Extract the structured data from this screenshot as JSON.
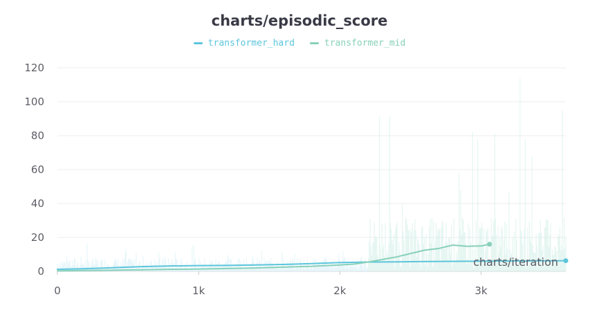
{
  "chart_data": {
    "type": "line",
    "title": "charts/episodic_score",
    "xlabel": "charts/iteration",
    "ylabel": "",
    "xlim": [
      0,
      3600
    ],
    "ylim": [
      0,
      125
    ],
    "grid": true,
    "legend_position": "top-center",
    "x_ticks": [
      {
        "value": 0,
        "label": "0"
      },
      {
        "value": 1000,
        "label": "1k"
      },
      {
        "value": 2000,
        "label": "2k"
      },
      {
        "value": 3000,
        "label": "3k"
      }
    ],
    "y_ticks": [
      {
        "value": 0,
        "label": "0"
      },
      {
        "value": 20,
        "label": "20"
      },
      {
        "value": 40,
        "label": "40"
      },
      {
        "value": 60,
        "label": "60"
      },
      {
        "value": 80,
        "label": "80"
      },
      {
        "value": 100,
        "label": "100"
      },
      {
        "value": 120,
        "label": "120"
      }
    ],
    "series": [
      {
        "name": "transformer_hard",
        "color": "#5bc5db",
        "x": [
          0,
          200,
          400,
          600,
          800,
          1000,
          1200,
          1400,
          1600,
          1800,
          2000,
          2200,
          2400,
          2600,
          2800,
          3000,
          3200,
          3400,
          3600
        ],
        "values": [
          1.2,
          1.6,
          2.2,
          2.8,
          3.2,
          3.4,
          3.5,
          3.8,
          4.1,
          4.6,
          5.2,
          5.5,
          5.6,
          5.8,
          5.9,
          6.0,
          6.1,
          6.2,
          6.3
        ]
      },
      {
        "name": "transformer_mid",
        "color": "#87d0b9",
        "x": [
          0,
          200,
          400,
          600,
          800,
          1000,
          1200,
          1400,
          1600,
          1800,
          2000,
          2100,
          2200,
          2300,
          2400,
          2500,
          2600,
          2700,
          2800,
          2900,
          3000,
          3060
        ],
        "values": [
          0.3,
          0.5,
          0.7,
          0.9,
          1.2,
          1.4,
          1.7,
          2.0,
          2.5,
          3.0,
          3.8,
          4.3,
          5.5,
          7.0,
          8.5,
          10.5,
          12.5,
          13.5,
          15.5,
          14.8,
          15.0,
          16.0
        ]
      }
    ]
  }
}
